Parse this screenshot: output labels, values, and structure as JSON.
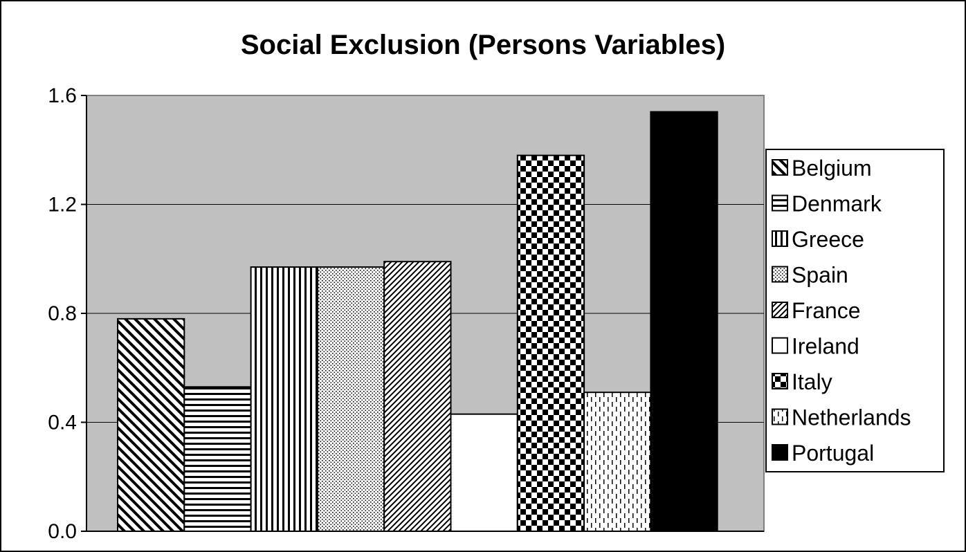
{
  "chart_data": {
    "type": "bar",
    "title": "Social Exclusion (Persons Variables)",
    "xlabel": "",
    "ylabel": "",
    "ylim": [
      0,
      1.6
    ],
    "yticks": [
      "0.0",
      "0.4",
      "0.8",
      "1.2",
      "1.6"
    ],
    "grid": true,
    "legend_position": "right",
    "series": [
      {
        "name": "Belgium",
        "value": 0.78,
        "pattern": "diag-back"
      },
      {
        "name": "Denmark",
        "value": 0.53,
        "pattern": "horizontal"
      },
      {
        "name": "Greece",
        "value": 0.97,
        "pattern": "vertical"
      },
      {
        "name": "Spain",
        "value": 0.97,
        "pattern": "dots"
      },
      {
        "name": "France",
        "value": 0.99,
        "pattern": "diag-fwd"
      },
      {
        "name": "Ireland",
        "value": 0.43,
        "pattern": "solid-white"
      },
      {
        "name": "Italy",
        "value": 1.38,
        "pattern": "checker"
      },
      {
        "name": "Netherlands",
        "value": 0.51,
        "pattern": "dashed-vertical"
      },
      {
        "name": "Portugal",
        "value": 1.54,
        "pattern": "solid-black"
      }
    ],
    "plot_background": "#c0c0c0",
    "gridline_color": "#000000"
  }
}
